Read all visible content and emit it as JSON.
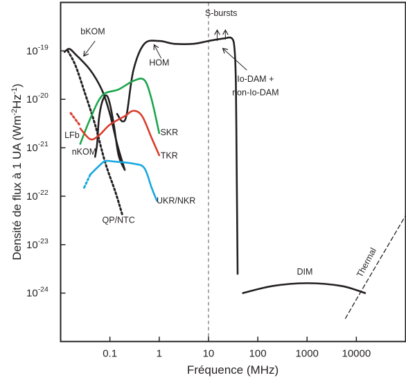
{
  "chart_data": {
    "type": "line",
    "xlabel": "Fréquence (MHz)",
    "ylabel_prefix": "Densité de flux à 1 UA (Wm",
    "ylabel_sup1": "-2",
    "ylabel_mid": "Hz",
    "ylabel_sup2": "-1",
    "ylabel_suffix": ")",
    "x_scale": "log",
    "y_scale": "log",
    "xlim": [
      0.01,
      100000
    ],
    "ylim": [
      1e-25,
      1e-18
    ],
    "x_ticks": [
      {
        "value": 0.1,
        "label": "0.1"
      },
      {
        "value": 1,
        "label": "1"
      },
      {
        "value": 10,
        "label": "10"
      },
      {
        "value": 100,
        "label": "100"
      },
      {
        "value": 1000,
        "label": "1000"
      },
      {
        "value": 10000,
        "label": "10000"
      }
    ],
    "y_ticks": [
      {
        "value": 1e-19,
        "base": "10",
        "exp": "-19"
      },
      {
        "value": 1e-20,
        "base": "10",
        "exp": "-20"
      },
      {
        "value": 1e-21,
        "base": "10",
        "exp": "-21"
      },
      {
        "value": 1e-22,
        "base": "10",
        "exp": "-22"
      },
      {
        "value": 1e-23,
        "base": "10",
        "exp": "-23"
      },
      {
        "value": 1e-24,
        "base": "10",
        "exp": "-24"
      }
    ],
    "grid": false,
    "legend": "none",
    "reference_line": {
      "x": 10,
      "style": "dashed"
    },
    "series": [
      {
        "name": "bKOM",
        "color": "#231f20",
        "dash": false,
        "points": [
          [
            0.012,
            9.5e-20
          ],
          [
            0.015,
            1.1e-19
          ],
          [
            0.02,
            8.5e-20
          ],
          [
            0.04,
            4e-20
          ],
          [
            0.07,
            1.5e-20
          ],
          [
            0.1,
            5e-21
          ],
          [
            0.14,
            1.2e-21
          ],
          [
            0.2,
            3.5e-22
          ]
        ]
      },
      {
        "name": "nKOM",
        "color": "#231f20",
        "dash": false,
        "points": [
          [
            0.05,
            6.5e-22
          ],
          [
            0.055,
            1.2e-21
          ],
          [
            0.06,
            4e-21
          ],
          [
            0.07,
            9e-21
          ],
          [
            0.085,
            1.2e-20
          ],
          [
            0.1,
            8e-21
          ],
          [
            0.12,
            3e-21
          ],
          [
            0.15,
            7e-22
          ],
          [
            0.2,
            3.5e-22
          ]
        ]
      },
      {
        "name": "QP/NTC",
        "color": "#231f20",
        "dash": true,
        "points": [
          [
            0.014,
            1e-19
          ],
          [
            0.02,
            5e-20
          ],
          [
            0.03,
            1.5e-20
          ],
          [
            0.05,
            3e-21
          ],
          [
            0.08,
            5e-22
          ],
          [
            0.13,
            1.2e-22
          ],
          [
            0.18,
            4e-23
          ]
        ]
      },
      {
        "name": "HOM",
        "color": "#231f20",
        "dash": false,
        "points": [
          [
            0.14,
            5e-21
          ],
          [
            0.18,
            3.5e-21
          ],
          [
            0.22,
            5e-21
          ],
          [
            0.3,
            4e-20
          ],
          [
            0.5,
            1.4e-19
          ],
          [
            1,
            1.6e-19
          ],
          [
            2,
            1.4e-19
          ],
          [
            5,
            1.4e-19
          ],
          [
            10,
            1.6e-19
          ],
          [
            20,
            1.8e-19
          ],
          [
            30,
            1.8e-19
          ],
          [
            34,
            1e-19
          ],
          [
            36,
            2e-20
          ],
          [
            37,
            1e-21
          ],
          [
            38,
            5e-23
          ],
          [
            39,
            2.5e-24
          ]
        ]
      },
      {
        "name": "SKR",
        "color": "#1aa64b",
        "dash": false,
        "points": [
          [
            0.025,
            1.2e-21
          ],
          [
            0.04,
            4e-21
          ],
          [
            0.07,
            1.2e-20
          ],
          [
            0.15,
            1.6e-20
          ],
          [
            0.3,
            2.4e-20
          ],
          [
            0.5,
            2.5e-20
          ],
          [
            0.7,
            1e-20
          ],
          [
            1,
            2e-21
          ]
        ]
      },
      {
        "name": "TKR",
        "color": "#d93b2b",
        "dash": false,
        "points": [
          [
            0.025,
            2.5e-21
          ],
          [
            0.04,
            1.5e-21
          ],
          [
            0.06,
            1.8e-21
          ],
          [
            0.1,
            3e-21
          ],
          [
            0.2,
            4.5e-21
          ],
          [
            0.3,
            5.8e-21
          ],
          [
            0.45,
            4.5e-21
          ],
          [
            0.7,
            1.6e-21
          ],
          [
            1,
            7e-22
          ]
        ]
      },
      {
        "name": "LFb",
        "color": "#d93b2b",
        "dash": true,
        "points": [
          [
            0.016,
            5.2e-21
          ],
          [
            0.024,
            3e-21
          ]
        ]
      },
      {
        "name": "UKR/NKR",
        "color": "#16a8e0",
        "dash": false,
        "points": [
          [
            0.04,
            2.8e-22
          ],
          [
            0.06,
            4.2e-22
          ],
          [
            0.08,
            5.3e-22
          ],
          [
            0.12,
            5.2e-22
          ],
          [
            0.3,
            4.7e-22
          ],
          [
            0.5,
            3.8e-22
          ],
          [
            0.7,
            1.5e-22
          ],
          [
            0.9,
            8e-23
          ]
        ]
      },
      {
        "name": "UKR/NKR-ext",
        "color": "#16a8e0",
        "dash": true,
        "points": [
          [
            0.03,
            1.5e-22
          ],
          [
            0.04,
            2.8e-22
          ]
        ]
      },
      {
        "name": "DIM",
        "color": "#231f20",
        "dash": false,
        "points": [
          [
            50,
            1e-24
          ],
          [
            200,
            1.4e-24
          ],
          [
            1000,
            1.6e-24
          ],
          [
            5000,
            1.4e-24
          ],
          [
            15000,
            1e-24
          ]
        ]
      },
      {
        "name": "Thermal",
        "color": "#231f20",
        "dash": true,
        "points": [
          [
            6000,
            3e-25
          ],
          [
            15000,
            1.5e-24
          ],
          [
            100000,
            4e-23
          ]
        ]
      }
    ],
    "labels": [
      {
        "text": "bKOM",
        "x": 0.045,
        "y": 2.2e-19,
        "color": "#231f20"
      },
      {
        "text": "HOM",
        "x": 1.0,
        "y": 5e-20,
        "color": "#231f20"
      },
      {
        "text": "S-bursts",
        "x": 18,
        "y": 5.3e-19,
        "color": "#231f20"
      },
      {
        "text": "Io-DAM +",
        "x": 90,
        "y": 2.3e-20,
        "color": "#231f20"
      },
      {
        "text": "non-Io-DAM",
        "x": 90,
        "y": 1.2e-20,
        "color": "#231f20"
      },
      {
        "text": "SKR",
        "x": 1.6,
        "y": 1.8e-21,
        "color": "#1aa64b"
      },
      {
        "text": "LFb",
        "x": 0.017,
        "y": 1.6e-21,
        "color": "#d93b2b"
      },
      {
        "text": "TKR",
        "x": 1.6,
        "y": 6e-22,
        "color": "#d93b2b"
      },
      {
        "text": "nKOM",
        "x": 0.03,
        "y": 7.2e-22,
        "color": "#231f20"
      },
      {
        "text": "QP/NTC",
        "x": 0.15,
        "y": 2.8e-23,
        "color": "#231f20"
      },
      {
        "text": "UKR/NKR",
        "x": 2.2,
        "y": 7e-23,
        "color": "#16a8e0"
      },
      {
        "text": "DIM",
        "x": 900,
        "y": 2.4e-24,
        "color": "#231f20"
      },
      {
        "text": "Thermal",
        "x": 18000,
        "y": 4e-24,
        "color": "#231f20",
        "rotate": -62
      }
    ]
  }
}
